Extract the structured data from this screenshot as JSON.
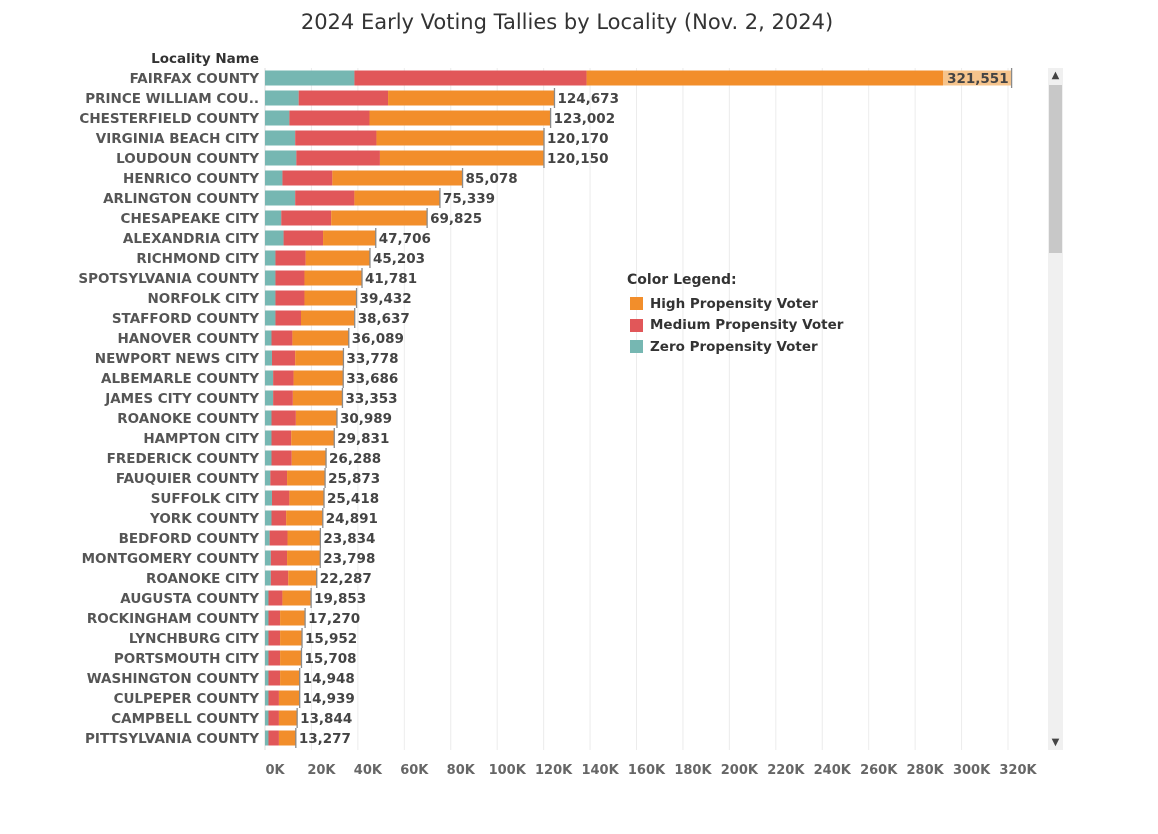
{
  "title": "2024 Early Voting Tallies by Locality (Nov. 2, 2024)",
  "colors": {
    "high": "#F28E2B",
    "medium": "#E15759",
    "zero": "#76B7B2",
    "highlight": "#F6C48C"
  },
  "legend": {
    "title": "Color Legend:",
    "items": [
      {
        "label": "High Propensity Voter",
        "color": "#F28E2B"
      },
      {
        "label": "Medium Propensity Voter",
        "color": "#E15759"
      },
      {
        "label": "Zero Propensity Voter",
        "color": "#76B7B2"
      }
    ]
  },
  "chart_data": {
    "type": "bar",
    "orientation": "horizontal",
    "stacked": true,
    "row_header": "Locality Name",
    "categories": [
      "FAIRFAX COUNTY",
      "PRINCE WILLIAM COU..",
      "CHESTERFIELD COUNTY",
      "VIRGINIA BEACH CITY",
      "LOUDOUN COUNTY",
      "HENRICO COUNTY",
      "ARLINGTON COUNTY",
      "CHESAPEAKE CITY",
      "ALEXANDRIA CITY",
      "RICHMOND CITY",
      "SPOTSYLVANIA COUNTY",
      "NORFOLK CITY",
      "STAFFORD COUNTY",
      "HANOVER COUNTY",
      "NEWPORT NEWS CITY",
      "ALBEMARLE COUNTY",
      "JAMES CITY COUNTY",
      "ROANOKE COUNTY",
      "HAMPTON CITY",
      "FREDERICK COUNTY",
      "FAUQUIER COUNTY",
      "SUFFOLK CITY",
      "YORK COUNTY",
      "BEDFORD COUNTY",
      "MONTGOMERY COUNTY",
      "ROANOKE CITY",
      "AUGUSTA COUNTY",
      "ROCKINGHAM COUNTY",
      "LYNCHBURG CITY",
      "PORTSMOUTH CITY",
      "WASHINGTON COUNTY",
      "CULPEPER COUNTY",
      "CAMPBELL COUNTY",
      "PITTSYLVANIA COUNTY"
    ],
    "series": [
      {
        "name": "Zero Propensity Voter",
        "values": [
          38500,
          14500,
          10500,
          13000,
          13500,
          7500,
          13000,
          7000,
          8000,
          4500,
          4500,
          4500,
          4500,
          2800,
          3000,
          3500,
          3500,
          2800,
          2800,
          2800,
          2300,
          3000,
          2800,
          2000,
          2500,
          2500,
          1500,
          1500,
          1500,
          1500,
          1500,
          1500,
          1500,
          1500
        ]
      },
      {
        "name": "Medium Propensity Voter",
        "values": [
          100000,
          38500,
          34500,
          35000,
          36000,
          21500,
          25500,
          21500,
          17000,
          13000,
          12500,
          12500,
          11000,
          9000,
          10000,
          8800,
          8500,
          10500,
          8500,
          8700,
          7200,
          7500,
          6300,
          7700,
          7000,
          7500,
          6000,
          5000,
          5000,
          5000,
          5000,
          4500,
          4500,
          4500
        ]
      },
      {
        "name": "High Propensity Voter",
        "values": [
          183051,
          71673,
          78002,
          72170,
          70650,
          56078,
          36839,
          41325,
          22706,
          27703,
          24781,
          22432,
          23137,
          24289,
          20778,
          21386,
          21353,
          17689,
          18531,
          14788,
          16373,
          14918,
          15791,
          14134,
          14298,
          12287,
          12353,
          10770,
          9452,
          9208,
          8448,
          8939,
          7844,
          7277
        ]
      }
    ],
    "totals": [
      321551,
      124673,
      123002,
      120170,
      120150,
      85078,
      75339,
      69825,
      47706,
      45203,
      41781,
      39432,
      38637,
      36089,
      33778,
      33686,
      33353,
      30989,
      29831,
      26288,
      25873,
      25418,
      24891,
      23834,
      23798,
      22287,
      19853,
      17270,
      15952,
      15708,
      14948,
      14939,
      13844,
      13277
    ],
    "total_labels": [
      "321,551",
      "124,673",
      "123,002",
      "120,170",
      "120,150",
      "85,078",
      "75,339",
      "69,825",
      "47,706",
      "45,203",
      "41,781",
      "39,432",
      "38,637",
      "36,089",
      "33,778",
      "33,686",
      "33,353",
      "30,989",
      "29,831",
      "26,288",
      "25,873",
      "25,418",
      "24,891",
      "23,834",
      "23,798",
      "22,287",
      "19,853",
      "17,270",
      "15,952",
      "15,708",
      "14,948",
      "14,939",
      "13,844",
      "13,277"
    ],
    "highlight": {
      "row": 0,
      "from": 292000
    },
    "xlim": [
      0,
      330000
    ],
    "xticks": [
      0,
      20000,
      40000,
      60000,
      80000,
      100000,
      120000,
      140000,
      160000,
      180000,
      200000,
      220000,
      240000,
      260000,
      280000,
      300000,
      320000
    ],
    "xtick_labels": [
      "0K",
      "20K",
      "40K",
      "60K",
      "80K",
      "100K",
      "120K",
      "140K",
      "160K",
      "180K",
      "200K",
      "220K",
      "240K",
      "260K",
      "280K",
      "300K",
      "320K"
    ],
    "grid": "vertical",
    "legend_position": "right"
  }
}
